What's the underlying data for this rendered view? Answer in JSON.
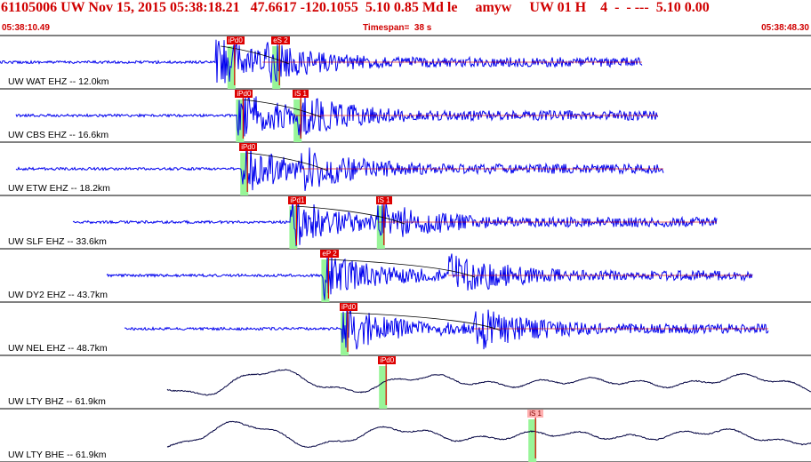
{
  "header": {
    "title": "61105006 UW Nov 15, 2015 05:38:18.21   47.6617 -120.1055  5.10 0.85 Md le     amyw     UW 01 H    4  -  - ---  5.10 0.00",
    "start_time": "05:38:10.49",
    "timespan": "Timespan=  38 s",
    "end_time": "05:38:48.30"
  },
  "colors": {
    "header": "#d00000",
    "trace": "#0000ee",
    "trace_broadband": "#000040",
    "pick": "#dd0000",
    "window": "#98f598",
    "divider": "#000000"
  },
  "channels": [
    {
      "label": "UW WAT EHZ -- 12.0km",
      "type": "short-period",
      "onset_s": 10.1,
      "end_s": 30.5,
      "s_s": 12.3,
      "picks": [
        {
          "label": "iPd0",
          "time_s": 10.7
        },
        {
          "label": "eS 2",
          "time_s": 12.8
        }
      ]
    },
    {
      "label": "UW CBS EHZ -- 16.6km",
      "type": "short-period",
      "onset_s": 11.1,
      "end_s": 31.4,
      "s_s": 13.8,
      "picks": [
        {
          "label": "iPd0",
          "time_s": 11.1
        },
        {
          "label": "iS 1",
          "time_s": 13.8
        }
      ]
    },
    {
      "label": "UW ETW EHZ -- 18.2km",
      "type": "short-period",
      "onset_s": 11.3,
      "end_s": 31.6,
      "s_s": 14.1,
      "picks": [
        {
          "label": "iPd0",
          "time_s": 11.3
        }
      ]
    },
    {
      "label": "UW SLF EHZ -- 33.6km",
      "type": "short-period",
      "onset_s": 13.6,
      "end_s": 34.0,
      "s_s": 17.7,
      "picks": [
        {
          "label": "iPd1",
          "time_s": 13.6
        },
        {
          "label": "iS 1",
          "time_s": 17.7
        }
      ]
    },
    {
      "label": "UW DY2 EHZ -- 43.7km",
      "type": "short-period",
      "onset_s": 15.1,
      "end_s": 35.5,
      "s_s": 21.0,
      "picks": [
        {
          "label": "eP 2",
          "time_s": 15.1
        }
      ]
    },
    {
      "label": "UW NEL EHZ -- 48.7km",
      "type": "short-period",
      "onset_s": 16.0,
      "end_s": 38.0,
      "s_s": 22.2,
      "picks": [
        {
          "label": "iPd0",
          "time_s": 16.0
        }
      ]
    },
    {
      "label": "UW LTY BHZ -- 61.9km",
      "type": "broadband",
      "onset_s": 17.9,
      "end_s": 38.0,
      "s_s": 26.0,
      "picks": [
        {
          "label": "iPd0",
          "time_s": 17.8
        }
      ]
    },
    {
      "label": "UW LTY BHE -- 61.9km",
      "type": "broadband",
      "onset_s": 17.9,
      "end_s": 38.0,
      "s_s": 25.5,
      "picks": [
        {
          "label": "iS 1",
          "time_s": 24.8
        }
      ]
    }
  ]
}
